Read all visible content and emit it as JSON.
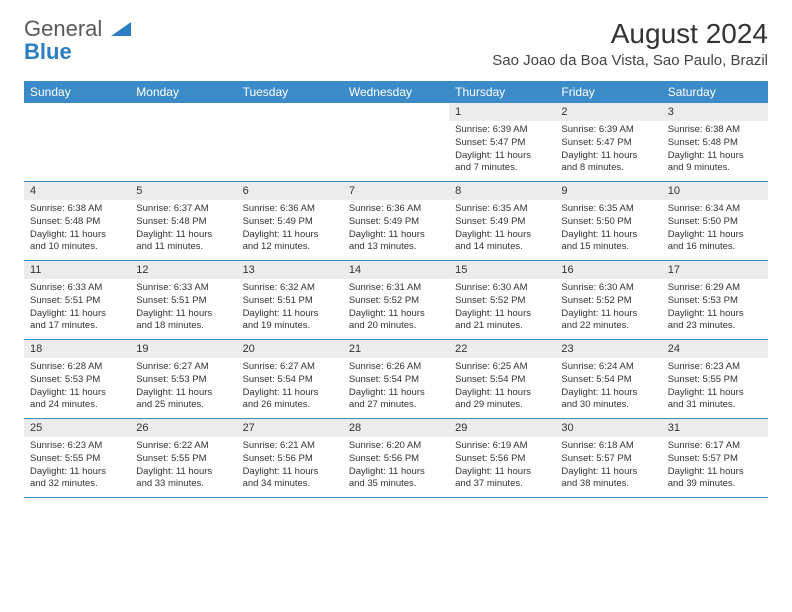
{
  "brand": {
    "part1": "General",
    "part2": "Blue"
  },
  "title": "August 2024",
  "location": "Sao Joao da Boa Vista, Sao Paulo, Brazil",
  "colors": {
    "header_bg": "#3b8bc9",
    "header_text": "#ffffff",
    "daynum_bg": "#ececec",
    "border": "#3b8bc9",
    "brand_gray": "#5a5a5a",
    "brand_blue": "#2d7dc2"
  },
  "day_names": [
    "Sunday",
    "Monday",
    "Tuesday",
    "Wednesday",
    "Thursday",
    "Friday",
    "Saturday"
  ],
  "weeks": [
    [
      null,
      null,
      null,
      null,
      {
        "n": "1",
        "sunrise": "6:39 AM",
        "sunset": "5:47 PM",
        "dl1": "Daylight: 11 hours",
        "dl2": "and 7 minutes."
      },
      {
        "n": "2",
        "sunrise": "6:39 AM",
        "sunset": "5:47 PM",
        "dl1": "Daylight: 11 hours",
        "dl2": "and 8 minutes."
      },
      {
        "n": "3",
        "sunrise": "6:38 AM",
        "sunset": "5:48 PM",
        "dl1": "Daylight: 11 hours",
        "dl2": "and 9 minutes."
      }
    ],
    [
      {
        "n": "4",
        "sunrise": "6:38 AM",
        "sunset": "5:48 PM",
        "dl1": "Daylight: 11 hours",
        "dl2": "and 10 minutes."
      },
      {
        "n": "5",
        "sunrise": "6:37 AM",
        "sunset": "5:48 PM",
        "dl1": "Daylight: 11 hours",
        "dl2": "and 11 minutes."
      },
      {
        "n": "6",
        "sunrise": "6:36 AM",
        "sunset": "5:49 PM",
        "dl1": "Daylight: 11 hours",
        "dl2": "and 12 minutes."
      },
      {
        "n": "7",
        "sunrise": "6:36 AM",
        "sunset": "5:49 PM",
        "dl1": "Daylight: 11 hours",
        "dl2": "and 13 minutes."
      },
      {
        "n": "8",
        "sunrise": "6:35 AM",
        "sunset": "5:49 PM",
        "dl1": "Daylight: 11 hours",
        "dl2": "and 14 minutes."
      },
      {
        "n": "9",
        "sunrise": "6:35 AM",
        "sunset": "5:50 PM",
        "dl1": "Daylight: 11 hours",
        "dl2": "and 15 minutes."
      },
      {
        "n": "10",
        "sunrise": "6:34 AM",
        "sunset": "5:50 PM",
        "dl1": "Daylight: 11 hours",
        "dl2": "and 16 minutes."
      }
    ],
    [
      {
        "n": "11",
        "sunrise": "6:33 AM",
        "sunset": "5:51 PM",
        "dl1": "Daylight: 11 hours",
        "dl2": "and 17 minutes."
      },
      {
        "n": "12",
        "sunrise": "6:33 AM",
        "sunset": "5:51 PM",
        "dl1": "Daylight: 11 hours",
        "dl2": "and 18 minutes."
      },
      {
        "n": "13",
        "sunrise": "6:32 AM",
        "sunset": "5:51 PM",
        "dl1": "Daylight: 11 hours",
        "dl2": "and 19 minutes."
      },
      {
        "n": "14",
        "sunrise": "6:31 AM",
        "sunset": "5:52 PM",
        "dl1": "Daylight: 11 hours",
        "dl2": "and 20 minutes."
      },
      {
        "n": "15",
        "sunrise": "6:30 AM",
        "sunset": "5:52 PM",
        "dl1": "Daylight: 11 hours",
        "dl2": "and 21 minutes."
      },
      {
        "n": "16",
        "sunrise": "6:30 AM",
        "sunset": "5:52 PM",
        "dl1": "Daylight: 11 hours",
        "dl2": "and 22 minutes."
      },
      {
        "n": "17",
        "sunrise": "6:29 AM",
        "sunset": "5:53 PM",
        "dl1": "Daylight: 11 hours",
        "dl2": "and 23 minutes."
      }
    ],
    [
      {
        "n": "18",
        "sunrise": "6:28 AM",
        "sunset": "5:53 PM",
        "dl1": "Daylight: 11 hours",
        "dl2": "and 24 minutes."
      },
      {
        "n": "19",
        "sunrise": "6:27 AM",
        "sunset": "5:53 PM",
        "dl1": "Daylight: 11 hours",
        "dl2": "and 25 minutes."
      },
      {
        "n": "20",
        "sunrise": "6:27 AM",
        "sunset": "5:54 PM",
        "dl1": "Daylight: 11 hours",
        "dl2": "and 26 minutes."
      },
      {
        "n": "21",
        "sunrise": "6:26 AM",
        "sunset": "5:54 PM",
        "dl1": "Daylight: 11 hours",
        "dl2": "and 27 minutes."
      },
      {
        "n": "22",
        "sunrise": "6:25 AM",
        "sunset": "5:54 PM",
        "dl1": "Daylight: 11 hours",
        "dl2": "and 29 minutes."
      },
      {
        "n": "23",
        "sunrise": "6:24 AM",
        "sunset": "5:54 PM",
        "dl1": "Daylight: 11 hours",
        "dl2": "and 30 minutes."
      },
      {
        "n": "24",
        "sunrise": "6:23 AM",
        "sunset": "5:55 PM",
        "dl1": "Daylight: 11 hours",
        "dl2": "and 31 minutes."
      }
    ],
    [
      {
        "n": "25",
        "sunrise": "6:23 AM",
        "sunset": "5:55 PM",
        "dl1": "Daylight: 11 hours",
        "dl2": "and 32 minutes."
      },
      {
        "n": "26",
        "sunrise": "6:22 AM",
        "sunset": "5:55 PM",
        "dl1": "Daylight: 11 hours",
        "dl2": "and 33 minutes."
      },
      {
        "n": "27",
        "sunrise": "6:21 AM",
        "sunset": "5:56 PM",
        "dl1": "Daylight: 11 hours",
        "dl2": "and 34 minutes."
      },
      {
        "n": "28",
        "sunrise": "6:20 AM",
        "sunset": "5:56 PM",
        "dl1": "Daylight: 11 hours",
        "dl2": "and 35 minutes."
      },
      {
        "n": "29",
        "sunrise": "6:19 AM",
        "sunset": "5:56 PM",
        "dl1": "Daylight: 11 hours",
        "dl2": "and 37 minutes."
      },
      {
        "n": "30",
        "sunrise": "6:18 AM",
        "sunset": "5:57 PM",
        "dl1": "Daylight: 11 hours",
        "dl2": "and 38 minutes."
      },
      {
        "n": "31",
        "sunrise": "6:17 AM",
        "sunset": "5:57 PM",
        "dl1": "Daylight: 11 hours",
        "dl2": "and 39 minutes."
      }
    ]
  ],
  "labels": {
    "sunrise": "Sunrise: ",
    "sunset": "Sunset: "
  }
}
